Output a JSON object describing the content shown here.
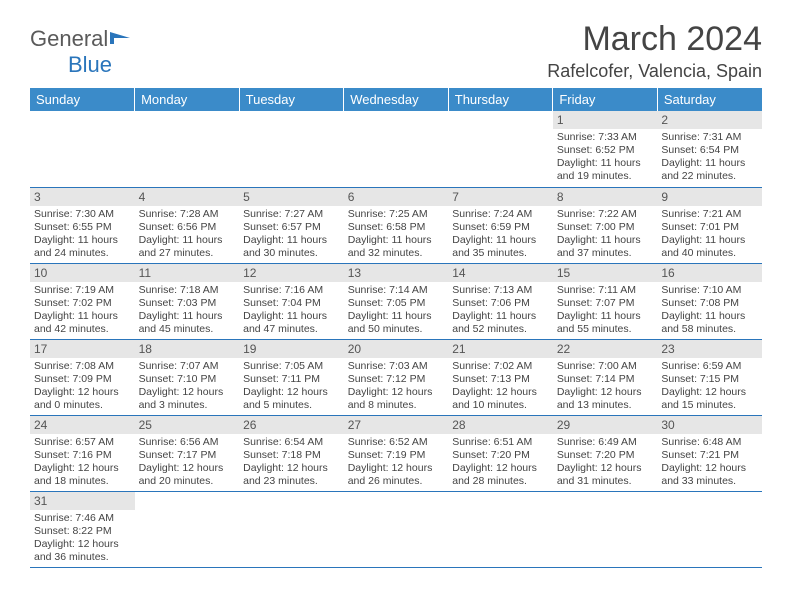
{
  "logo": {
    "text1": "General",
    "text2": "Blue"
  },
  "title": "March 2024",
  "location": "Rafelcofer, Valencia, Spain",
  "colors": {
    "header_bg": "#3b8bc9",
    "header_text": "#ffffff",
    "daynum_bg": "#e6e6e6",
    "border": "#2a75bb"
  },
  "weekdays": [
    "Sunday",
    "Monday",
    "Tuesday",
    "Wednesday",
    "Thursday",
    "Friday",
    "Saturday"
  ],
  "weeks": [
    [
      null,
      null,
      null,
      null,
      null,
      {
        "n": "1",
        "r": "Sunrise: 7:33 AM",
        "s": "Sunset: 6:52 PM",
        "d1": "Daylight: 11 hours",
        "d2": "and 19 minutes."
      },
      {
        "n": "2",
        "r": "Sunrise: 7:31 AM",
        "s": "Sunset: 6:54 PM",
        "d1": "Daylight: 11 hours",
        "d2": "and 22 minutes."
      }
    ],
    [
      {
        "n": "3",
        "r": "Sunrise: 7:30 AM",
        "s": "Sunset: 6:55 PM",
        "d1": "Daylight: 11 hours",
        "d2": "and 24 minutes."
      },
      {
        "n": "4",
        "r": "Sunrise: 7:28 AM",
        "s": "Sunset: 6:56 PM",
        "d1": "Daylight: 11 hours",
        "d2": "and 27 minutes."
      },
      {
        "n": "5",
        "r": "Sunrise: 7:27 AM",
        "s": "Sunset: 6:57 PM",
        "d1": "Daylight: 11 hours",
        "d2": "and 30 minutes."
      },
      {
        "n": "6",
        "r": "Sunrise: 7:25 AM",
        "s": "Sunset: 6:58 PM",
        "d1": "Daylight: 11 hours",
        "d2": "and 32 minutes."
      },
      {
        "n": "7",
        "r": "Sunrise: 7:24 AM",
        "s": "Sunset: 6:59 PM",
        "d1": "Daylight: 11 hours",
        "d2": "and 35 minutes."
      },
      {
        "n": "8",
        "r": "Sunrise: 7:22 AM",
        "s": "Sunset: 7:00 PM",
        "d1": "Daylight: 11 hours",
        "d2": "and 37 minutes."
      },
      {
        "n": "9",
        "r": "Sunrise: 7:21 AM",
        "s": "Sunset: 7:01 PM",
        "d1": "Daylight: 11 hours",
        "d2": "and 40 minutes."
      }
    ],
    [
      {
        "n": "10",
        "r": "Sunrise: 7:19 AM",
        "s": "Sunset: 7:02 PM",
        "d1": "Daylight: 11 hours",
        "d2": "and 42 minutes."
      },
      {
        "n": "11",
        "r": "Sunrise: 7:18 AM",
        "s": "Sunset: 7:03 PM",
        "d1": "Daylight: 11 hours",
        "d2": "and 45 minutes."
      },
      {
        "n": "12",
        "r": "Sunrise: 7:16 AM",
        "s": "Sunset: 7:04 PM",
        "d1": "Daylight: 11 hours",
        "d2": "and 47 minutes."
      },
      {
        "n": "13",
        "r": "Sunrise: 7:14 AM",
        "s": "Sunset: 7:05 PM",
        "d1": "Daylight: 11 hours",
        "d2": "and 50 minutes."
      },
      {
        "n": "14",
        "r": "Sunrise: 7:13 AM",
        "s": "Sunset: 7:06 PM",
        "d1": "Daylight: 11 hours",
        "d2": "and 52 minutes."
      },
      {
        "n": "15",
        "r": "Sunrise: 7:11 AM",
        "s": "Sunset: 7:07 PM",
        "d1": "Daylight: 11 hours",
        "d2": "and 55 minutes."
      },
      {
        "n": "16",
        "r": "Sunrise: 7:10 AM",
        "s": "Sunset: 7:08 PM",
        "d1": "Daylight: 11 hours",
        "d2": "and 58 minutes."
      }
    ],
    [
      {
        "n": "17",
        "r": "Sunrise: 7:08 AM",
        "s": "Sunset: 7:09 PM",
        "d1": "Daylight: 12 hours",
        "d2": "and 0 minutes."
      },
      {
        "n": "18",
        "r": "Sunrise: 7:07 AM",
        "s": "Sunset: 7:10 PM",
        "d1": "Daylight: 12 hours",
        "d2": "and 3 minutes."
      },
      {
        "n": "19",
        "r": "Sunrise: 7:05 AM",
        "s": "Sunset: 7:11 PM",
        "d1": "Daylight: 12 hours",
        "d2": "and 5 minutes."
      },
      {
        "n": "20",
        "r": "Sunrise: 7:03 AM",
        "s": "Sunset: 7:12 PM",
        "d1": "Daylight: 12 hours",
        "d2": "and 8 minutes."
      },
      {
        "n": "21",
        "r": "Sunrise: 7:02 AM",
        "s": "Sunset: 7:13 PM",
        "d1": "Daylight: 12 hours",
        "d2": "and 10 minutes."
      },
      {
        "n": "22",
        "r": "Sunrise: 7:00 AM",
        "s": "Sunset: 7:14 PM",
        "d1": "Daylight: 12 hours",
        "d2": "and 13 minutes."
      },
      {
        "n": "23",
        "r": "Sunrise: 6:59 AM",
        "s": "Sunset: 7:15 PM",
        "d1": "Daylight: 12 hours",
        "d2": "and 15 minutes."
      }
    ],
    [
      {
        "n": "24",
        "r": "Sunrise: 6:57 AM",
        "s": "Sunset: 7:16 PM",
        "d1": "Daylight: 12 hours",
        "d2": "and 18 minutes."
      },
      {
        "n": "25",
        "r": "Sunrise: 6:56 AM",
        "s": "Sunset: 7:17 PM",
        "d1": "Daylight: 12 hours",
        "d2": "and 20 minutes."
      },
      {
        "n": "26",
        "r": "Sunrise: 6:54 AM",
        "s": "Sunset: 7:18 PM",
        "d1": "Daylight: 12 hours",
        "d2": "and 23 minutes."
      },
      {
        "n": "27",
        "r": "Sunrise: 6:52 AM",
        "s": "Sunset: 7:19 PM",
        "d1": "Daylight: 12 hours",
        "d2": "and 26 minutes."
      },
      {
        "n": "28",
        "r": "Sunrise: 6:51 AM",
        "s": "Sunset: 7:20 PM",
        "d1": "Daylight: 12 hours",
        "d2": "and 28 minutes."
      },
      {
        "n": "29",
        "r": "Sunrise: 6:49 AM",
        "s": "Sunset: 7:20 PM",
        "d1": "Daylight: 12 hours",
        "d2": "and 31 minutes."
      },
      {
        "n": "30",
        "r": "Sunrise: 6:48 AM",
        "s": "Sunset: 7:21 PM",
        "d1": "Daylight: 12 hours",
        "d2": "and 33 minutes."
      }
    ],
    [
      {
        "n": "31",
        "r": "Sunrise: 7:46 AM",
        "s": "Sunset: 8:22 PM",
        "d1": "Daylight: 12 hours",
        "d2": "and 36 minutes."
      },
      null,
      null,
      null,
      null,
      null,
      null
    ]
  ]
}
